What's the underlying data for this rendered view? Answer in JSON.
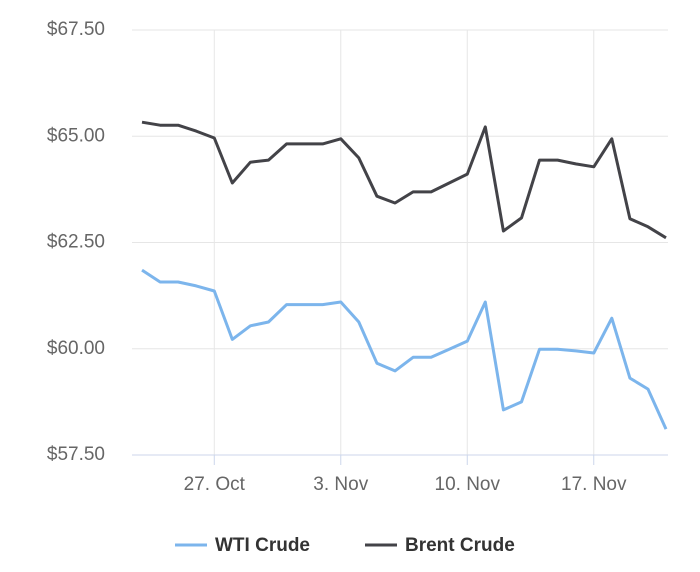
{
  "chart_data": {
    "type": "line",
    "categories": [
      null,
      null,
      null,
      null,
      "27. Oct",
      null,
      null,
      null,
      null,
      null,
      null,
      "3. Nov",
      null,
      null,
      null,
      null,
      null,
      null,
      "10. Nov",
      null,
      null,
      null,
      null,
      null,
      null,
      "17. Nov",
      null,
      null,
      null,
      null
    ],
    "series": [
      {
        "name": "WTI Crude",
        "color": "#7cb5ec",
        "values": [
          61.85,
          61.57,
          61.57,
          61.48,
          61.36,
          60.22,
          60.54,
          60.63,
          61.04,
          61.04,
          61.04,
          61.1,
          60.63,
          59.66,
          59.48,
          59.8,
          59.8,
          59.99,
          60.18,
          61.1,
          58.56,
          58.75,
          59.99,
          59.99,
          59.95,
          59.9,
          60.72,
          59.31,
          59.05,
          58.11
        ]
      },
      {
        "name": "Brent Crude",
        "color": "#434348",
        "values": [
          65.33,
          65.26,
          65.26,
          65.12,
          64.96,
          63.9,
          64.39,
          64.44,
          64.82,
          64.82,
          64.82,
          64.94,
          64.49,
          63.59,
          63.43,
          63.69,
          63.69,
          63.9,
          64.11,
          65.22,
          62.77,
          63.08,
          64.44,
          64.44,
          64.35,
          64.28,
          64.94,
          63.06,
          62.87,
          62.61
        ]
      }
    ],
    "ylim": [
      57.5,
      67.5
    ],
    "yticks": [
      {
        "value": 57.5,
        "label": "$57.50"
      },
      {
        "value": 60,
        "label": "$60.00"
      },
      {
        "value": 62.5,
        "label": "$62.50"
      },
      {
        "value": 65,
        "label": "$65.00"
      },
      {
        "value": 67.5,
        "label": "$67.50"
      }
    ],
    "grid": true
  }
}
